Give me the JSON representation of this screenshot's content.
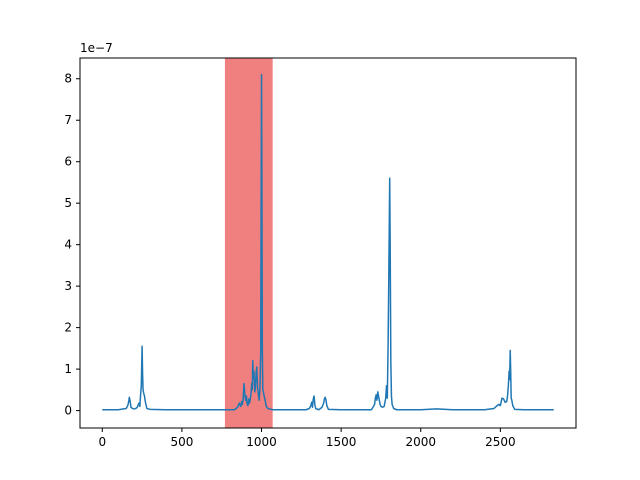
{
  "chart_data": {
    "type": "line",
    "title": "",
    "xlabel": "",
    "ylabel": "",
    "y_offset_label": "1e−7",
    "xlim": [
      -140,
      2975
    ],
    "ylim": [
      -0.42,
      8.5
    ],
    "x_ticks": [
      0,
      500,
      1000,
      1500,
      2000,
      2500
    ],
    "y_ticks": [
      0,
      1,
      2,
      3,
      4,
      5,
      6,
      7,
      8
    ],
    "grid": false,
    "legend": "none",
    "highlight_span": {
      "x_start": 770,
      "x_end": 1070,
      "color": "#f08080"
    },
    "series": [
      {
        "color": "#1f77b4",
        "points": [
          [
            0,
            0.02
          ],
          [
            50,
            0.02
          ],
          [
            100,
            0.02
          ],
          [
            150,
            0.05
          ],
          [
            160,
            0.12
          ],
          [
            165,
            0.2
          ],
          [
            170,
            0.32
          ],
          [
            175,
            0.22
          ],
          [
            180,
            0.08
          ],
          [
            190,
            0.05
          ],
          [
            200,
            0.04
          ],
          [
            210,
            0.05
          ],
          [
            220,
            0.08
          ],
          [
            230,
            0.18
          ],
          [
            236,
            0.1
          ],
          [
            240,
            0.35
          ],
          [
            245,
            0.6
          ],
          [
            250,
            1.55
          ],
          [
            253,
            0.9
          ],
          [
            256,
            0.5
          ],
          [
            260,
            0.42
          ],
          [
            265,
            0.35
          ],
          [
            270,
            0.22
          ],
          [
            280,
            0.05
          ],
          [
            300,
            0.03
          ],
          [
            400,
            0.02
          ],
          [
            500,
            0.02
          ],
          [
            600,
            0.02
          ],
          [
            700,
            0.02
          ],
          [
            780,
            0.02
          ],
          [
            830,
            0.02
          ],
          [
            850,
            0.08
          ],
          [
            860,
            0.18
          ],
          [
            870,
            0.1
          ],
          [
            875,
            0.22
          ],
          [
            880,
            0.15
          ],
          [
            885,
            0.3
          ],
          [
            890,
            0.65
          ],
          [
            895,
            0.4
          ],
          [
            900,
            0.25
          ],
          [
            905,
            0.35
          ],
          [
            910,
            0.15
          ],
          [
            915,
            0.12
          ],
          [
            920,
            0.28
          ],
          [
            925,
            0.18
          ],
          [
            930,
            0.3
          ],
          [
            935,
            0.45
          ],
          [
            938,
            0.65
          ],
          [
            942,
            0.5
          ],
          [
            945,
            1.2
          ],
          [
            948,
            0.8
          ],
          [
            952,
            0.95
          ],
          [
            955,
            0.7
          ],
          [
            958,
            0.45
          ],
          [
            962,
            0.6
          ],
          [
            966,
            0.9
          ],
          [
            970,
            1.05
          ],
          [
            975,
            0.55
          ],
          [
            980,
            0.4
          ],
          [
            985,
            0.25
          ],
          [
            990,
            0.5
          ],
          [
            995,
            1.4
          ],
          [
            998,
            5.5
          ],
          [
            1000,
            8.1
          ],
          [
            1002,
            6.0
          ],
          [
            1005,
            1.5
          ],
          [
            1008,
            0.5
          ],
          [
            1012,
            0.45
          ],
          [
            1016,
            0.35
          ],
          [
            1020,
            0.3
          ],
          [
            1025,
            0.2
          ],
          [
            1030,
            0.1
          ],
          [
            1040,
            0.05
          ],
          [
            1050,
            0.04
          ],
          [
            1070,
            0.02
          ],
          [
            1100,
            0.02
          ],
          [
            1200,
            0.02
          ],
          [
            1280,
            0.02
          ],
          [
            1300,
            0.05
          ],
          [
            1310,
            0.12
          ],
          [
            1315,
            0.2
          ],
          [
            1320,
            0.08
          ],
          [
            1325,
            0.28
          ],
          [
            1330,
            0.35
          ],
          [
            1335,
            0.15
          ],
          [
            1340,
            0.05
          ],
          [
            1360,
            0.02
          ],
          [
            1380,
            0.08
          ],
          [
            1390,
            0.18
          ],
          [
            1395,
            0.28
          ],
          [
            1400,
            0.32
          ],
          [
            1405,
            0.25
          ],
          [
            1410,
            0.12
          ],
          [
            1420,
            0.03
          ],
          [
            1500,
            0.02
          ],
          [
            1600,
            0.02
          ],
          [
            1690,
            0.02
          ],
          [
            1700,
            0.08
          ],
          [
            1710,
            0.15
          ],
          [
            1715,
            0.3
          ],
          [
            1720,
            0.38
          ],
          [
            1725,
            0.25
          ],
          [
            1730,
            0.45
          ],
          [
            1735,
            0.35
          ],
          [
            1740,
            0.25
          ],
          [
            1745,
            0.15
          ],
          [
            1750,
            0.1
          ],
          [
            1760,
            0.08
          ],
          [
            1770,
            0.1
          ],
          [
            1780,
            0.3
          ],
          [
            1785,
            0.6
          ],
          [
            1790,
            0.3
          ],
          [
            1795,
            1.6
          ],
          [
            1800,
            3.5
          ],
          [
            1805,
            5.6
          ],
          [
            1808,
            4.0
          ],
          [
            1812,
            1.2
          ],
          [
            1816,
            0.35
          ],
          [
            1820,
            0.15
          ],
          [
            1830,
            0.05
          ],
          [
            1850,
            0.02
          ],
          [
            1900,
            0.02
          ],
          [
            2000,
            0.02
          ],
          [
            2100,
            0.04
          ],
          [
            2200,
            0.02
          ],
          [
            2400,
            0.02
          ],
          [
            2460,
            0.05
          ],
          [
            2480,
            0.12
          ],
          [
            2490,
            0.15
          ],
          [
            2500,
            0.12
          ],
          [
            2510,
            0.3
          ],
          [
            2520,
            0.28
          ],
          [
            2530,
            0.2
          ],
          [
            2540,
            0.22
          ],
          [
            2545,
            0.35
          ],
          [
            2550,
            0.6
          ],
          [
            2555,
            0.95
          ],
          [
            2558,
            0.75
          ],
          [
            2562,
            1.45
          ],
          [
            2565,
            0.9
          ],
          [
            2568,
            0.3
          ],
          [
            2572,
            0.25
          ],
          [
            2578,
            0.12
          ],
          [
            2590,
            0.03
          ],
          [
            2650,
            0.02
          ],
          [
            2750,
            0.02
          ],
          [
            2835,
            0.02
          ]
        ]
      }
    ]
  }
}
